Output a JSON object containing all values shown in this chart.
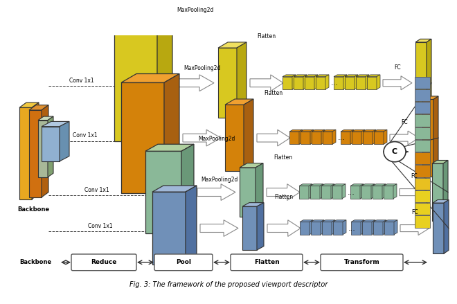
{
  "bg_color": "#ffffff",
  "fig_caption": "Fig. 3: The framework of the proposed viewport descriptor",
  "backbone_label": "Backbone",
  "stage_labels": [
    "Reduce",
    "Pool",
    "Flatten",
    "Transform"
  ],
  "conv_labels": [
    "Conv 1x1",
    "Conv 1x1",
    "Conv 1x1",
    "Conv 1x1"
  ],
  "mp_labels": [
    "MaxPooling2d",
    "MaxPooling2d",
    "MaxPooling2d",
    "MaxPooling2d"
  ],
  "flatten_labels": [
    "Flatten",
    "Flatten",
    "Flatten",
    "Flatten"
  ],
  "fc_labels": [
    "FC",
    "FC",
    "FC",
    "FC"
  ],
  "concat_label": "C",
  "row_colors": [
    "#d8c820",
    "#d4820a",
    "#8ab898",
    "#7090b8"
  ],
  "row_dark_colors": [
    "#b8a810",
    "#a86010",
    "#6a9878",
    "#5070a0"
  ],
  "row_top_colors": [
    "#f0e060",
    "#f0a030",
    "#b0d0a0",
    "#a0b8d8"
  ],
  "output_colors": [
    "#e8d020",
    "#e8d020",
    "#e8d020",
    "#e8c020",
    "#d4820a",
    "#d4820a",
    "#8ab898",
    "#8ab898",
    "#8ab898",
    "#7090b8",
    "#7090b8",
    "#7090b8"
  ],
  "backbone_panels": [
    {
      "color": "#e8a820",
      "dark": "#c88010",
      "top": "#f0c840"
    },
    {
      "color": "#d07010",
      "dark": "#b06010",
      "top": "#e09030"
    },
    {
      "color": "#a8b898",
      "dark": "#80a070",
      "top": "#c8d8b8"
    },
    {
      "color": "#90b0d0",
      "dark": "#6890b0",
      "top": "#b0c8e0"
    }
  ]
}
